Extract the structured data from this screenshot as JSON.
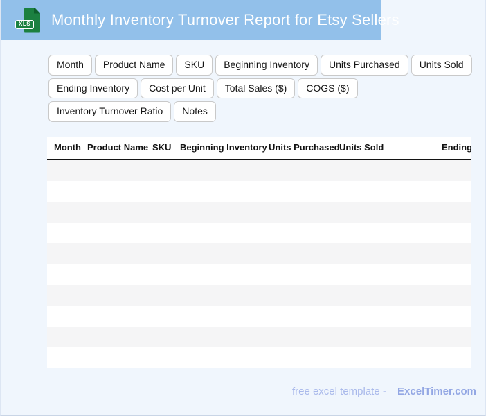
{
  "header": {
    "title": "Monthly Inventory Turnover Report for Etsy Sellers",
    "file_badge": "XLS"
  },
  "field_chips": {
    "rows": [
      [
        "Month",
        "Product Name",
        "SKU",
        "Beginning Inventory",
        "Units Purchased",
        "Units Sold"
      ],
      [
        "Ending Inventory",
        "Cost per Unit",
        "Total Sales ($)",
        "COGS ($)"
      ],
      [
        "Inventory Turnover Ratio",
        "Notes"
      ]
    ]
  },
  "table": {
    "columns": [
      "Month",
      "Product Name",
      "SKU",
      "Beginning Inventory",
      "Units Purchased",
      "Units Sold",
      "Ending Inventory"
    ],
    "rows": [],
    "row_count": 10
  },
  "footer": {
    "text": "free excel template -",
    "brand": "ExcelTimer.com"
  },
  "colors": {
    "banner": "#92c0ea",
    "background": "#f0f6fd",
    "icon_green": "#1b8040",
    "stripe": "#f5f5f6",
    "footer_text": "#a9b9eb",
    "footer_brand": "#93a7e4"
  }
}
